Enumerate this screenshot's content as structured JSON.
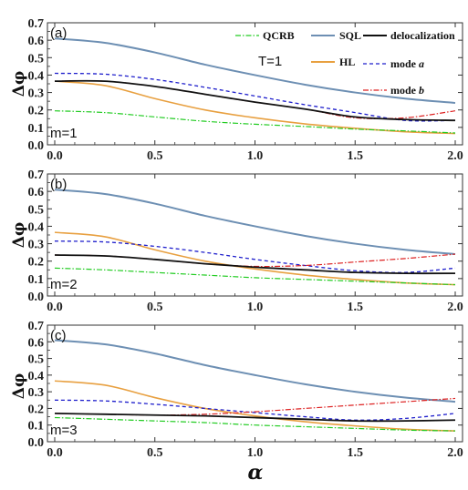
{
  "figure": {
    "xlabel": "α",
    "ylabel": "Δφ",
    "annotation": "T=1",
    "legend": {
      "QCRB": "QCRB",
      "SQL": "SQL",
      "delocalization": "delocalization",
      "HL": "HL",
      "mode_a_prefix": "mode ",
      "mode_a_var": "a",
      "mode_b_prefix": "mode ",
      "mode_b_var": "b"
    }
  },
  "colors": {
    "QCRB": "#22cc22",
    "SQL": "#6d8fb3",
    "delocalization": "#111111",
    "HL": "#e8a040",
    "mode_a": "#1f1fcc",
    "mode_b": "#dd2222",
    "frame": "#333333"
  },
  "chart_data": [
    {
      "type": "line",
      "panel": "(a)",
      "m_label": "m=1",
      "xlim": [
        0,
        2
      ],
      "ylim": [
        0,
        0.7
      ],
      "xticks": [
        "0.0",
        "0.5",
        "1.0",
        "1.5",
        "2.0"
      ],
      "yticks": [
        "0.0",
        "0.1",
        "0.2",
        "0.3",
        "0.4",
        "0.5",
        "0.6",
        "0.7"
      ],
      "x": [
        0,
        0.25,
        0.5,
        0.75,
        1.0,
        1.25,
        1.5,
        1.75,
        2.0
      ],
      "series": [
        {
          "name": "QCRB",
          "values": [
            0.195,
            0.185,
            0.16,
            0.135,
            0.118,
            0.105,
            0.09,
            0.08,
            0.068
          ]
        },
        {
          "name": "SQL",
          "values": [
            0.61,
            0.585,
            0.53,
            0.46,
            0.4,
            0.345,
            0.3,
            0.265,
            0.24
          ]
        },
        {
          "name": "delocalization",
          "values": [
            0.365,
            0.365,
            0.335,
            0.29,
            0.245,
            0.205,
            0.16,
            0.145,
            0.14
          ]
        },
        {
          "name": "HL",
          "values": [
            0.365,
            0.34,
            0.265,
            0.2,
            0.155,
            0.12,
            0.095,
            0.075,
            0.065
          ]
        },
        {
          "name": "mode a",
          "values": [
            0.41,
            0.405,
            0.375,
            0.33,
            0.28,
            0.23,
            0.185,
            0.14,
            0.14
          ]
        },
        {
          "name": "mode b",
          "values": [
            0.365,
            0.365,
            0.335,
            0.29,
            0.245,
            0.205,
            0.155,
            0.155,
            0.195
          ]
        }
      ]
    },
    {
      "type": "line",
      "panel": "(b)",
      "m_label": "m=2",
      "xlim": [
        0,
        2
      ],
      "ylim": [
        0,
        0.7
      ],
      "xticks": [
        "0.0",
        "0.5",
        "1.0",
        "1.5",
        "2.0"
      ],
      "yticks": [
        "0.0",
        "0.1",
        "0.2",
        "0.3",
        "0.4",
        "0.5",
        "0.6",
        "0.7"
      ],
      "x": [
        0,
        0.25,
        0.5,
        0.75,
        1.0,
        1.25,
        1.5,
        1.75,
        2.0
      ],
      "series": [
        {
          "name": "QCRB",
          "values": [
            0.16,
            0.15,
            0.135,
            0.12,
            0.105,
            0.095,
            0.085,
            0.075,
            0.065
          ]
        },
        {
          "name": "SQL",
          "values": [
            0.61,
            0.585,
            0.53,
            0.46,
            0.4,
            0.345,
            0.3,
            0.265,
            0.24
          ]
        },
        {
          "name": "delocalization",
          "values": [
            0.235,
            0.23,
            0.21,
            0.185,
            0.165,
            0.15,
            0.135,
            0.13,
            0.13
          ]
        },
        {
          "name": "HL",
          "values": [
            0.365,
            0.34,
            0.265,
            0.2,
            0.155,
            0.12,
            0.095,
            0.075,
            0.065
          ]
        },
        {
          "name": "mode a",
          "values": [
            0.315,
            0.31,
            0.285,
            0.25,
            0.21,
            0.175,
            0.145,
            0.135,
            0.16
          ]
        },
        {
          "name": "mode b",
          "values": [
            0.235,
            0.23,
            0.21,
            0.185,
            0.17,
            0.175,
            0.195,
            0.215,
            0.24
          ]
        }
      ]
    },
    {
      "type": "line",
      "panel": "(c)",
      "m_label": "m=3",
      "xlim": [
        0,
        2
      ],
      "ylim": [
        0,
        0.7
      ],
      "xticks": [
        "0.0",
        "0.5",
        "1.0",
        "1.5",
        "2.0"
      ],
      "yticks": [
        "0.0",
        "0.1",
        "0.2",
        "0.3",
        "0.4",
        "0.5",
        "0.6",
        "0.7"
      ],
      "x": [
        0,
        0.25,
        0.5,
        0.75,
        1.0,
        1.25,
        1.5,
        1.75,
        2.0
      ],
      "series": [
        {
          "name": "QCRB",
          "values": [
            0.145,
            0.135,
            0.125,
            0.115,
            0.1,
            0.09,
            0.08,
            0.07,
            0.065
          ]
        },
        {
          "name": "SQL",
          "values": [
            0.61,
            0.585,
            0.53,
            0.46,
            0.4,
            0.345,
            0.3,
            0.265,
            0.24
          ]
        },
        {
          "name": "delocalization",
          "values": [
            0.17,
            0.165,
            0.16,
            0.155,
            0.145,
            0.135,
            0.125,
            0.125,
            0.13
          ]
        },
        {
          "name": "HL",
          "values": [
            0.365,
            0.34,
            0.265,
            0.2,
            0.155,
            0.12,
            0.095,
            0.075,
            0.065
          ]
        },
        {
          "name": "mode a",
          "values": [
            0.25,
            0.245,
            0.225,
            0.2,
            0.175,
            0.15,
            0.13,
            0.14,
            0.17
          ]
        },
        {
          "name": "mode b",
          "values": [
            0.17,
            0.165,
            0.16,
            0.165,
            0.18,
            0.2,
            0.22,
            0.24,
            0.26
          ]
        }
      ]
    }
  ]
}
